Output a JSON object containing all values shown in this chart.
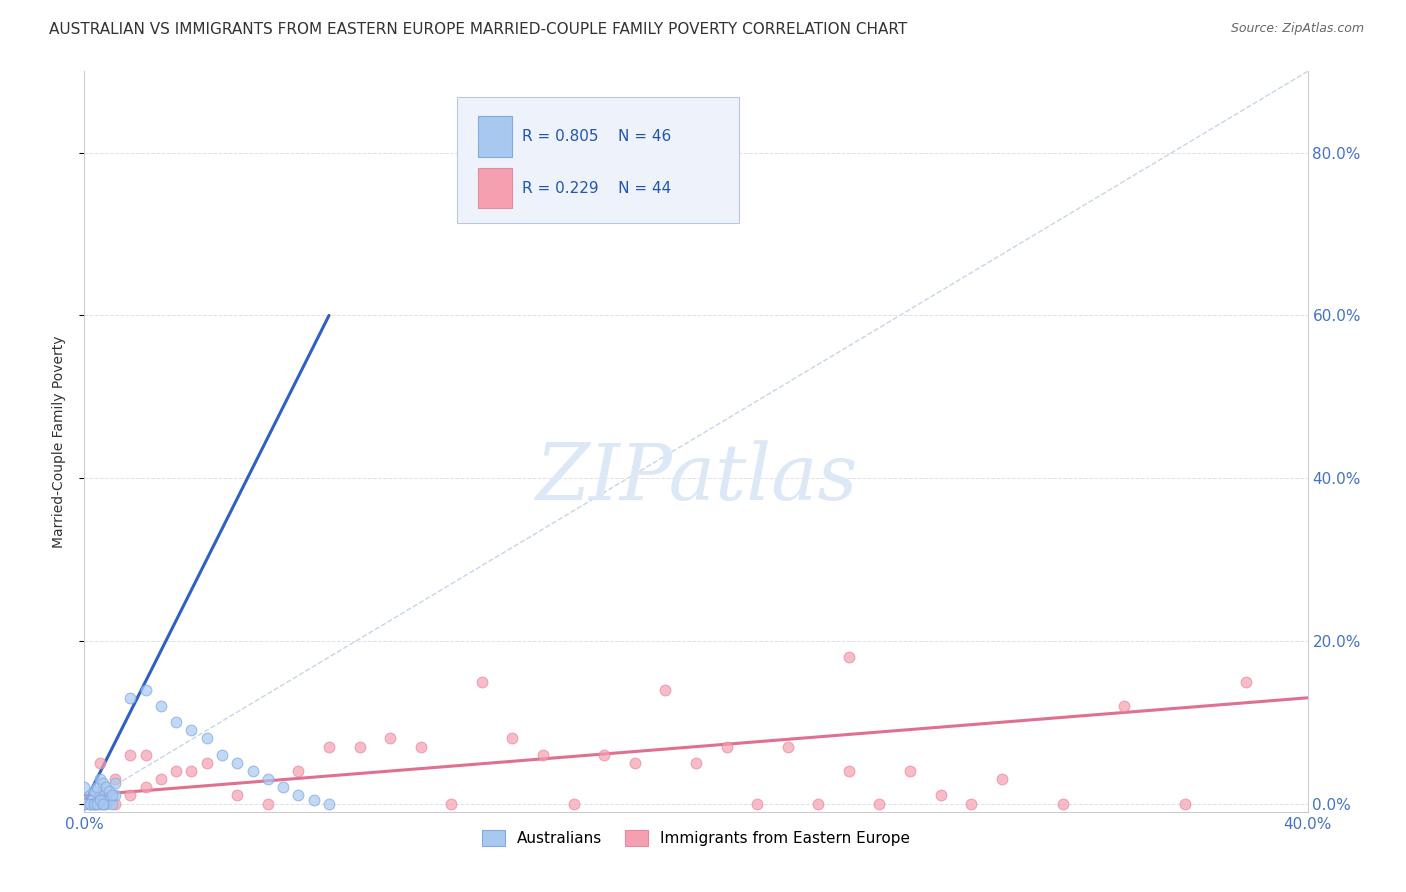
{
  "title": "AUSTRALIAN VS IMMIGRANTS FROM EASTERN EUROPE MARRIED-COUPLE FAMILY POVERTY CORRELATION CHART",
  "source": "Source: ZipAtlas.com",
  "ylabel": "Married-Couple Family Poverty",
  "xlim": [
    0.0,
    0.4
  ],
  "ylim": [
    -0.01,
    0.9
  ],
  "yticks": [
    0.0,
    0.2,
    0.4,
    0.6,
    0.8
  ],
  "ytick_labels_right": [
    "0.0%",
    "20.0%",
    "40.0%",
    "60.0%",
    "80.0%"
  ],
  "xtick_positions": [
    0.0,
    0.4
  ],
  "xtick_labels": [
    "0.0%",
    "40.0%"
  ],
  "legend_r1": "0.805",
  "legend_n1": "46",
  "legend_r2": "0.229",
  "legend_n2": "44",
  "australian_color": "#a8c8f0",
  "immigrant_color": "#f5a0b0",
  "blue_line_color": "#3060c0",
  "pink_line_color": "#e07090",
  "diag_line_color": "#b8cce0",
  "grid_color": "#dde1ec",
  "background_color": "#ffffff",
  "watermark_color": "#dce8f5",
  "aus_scatter_x": [
    0.0,
    0.002,
    0.003,
    0.004,
    0.005,
    0.006,
    0.007,
    0.008,
    0.009,
    0.01,
    0.0,
    0.002,
    0.003,
    0.004,
    0.005,
    0.006,
    0.007,
    0.008,
    0.009,
    0.01,
    0.0,
    0.002,
    0.003,
    0.004,
    0.005,
    0.006,
    0.015,
    0.02,
    0.025,
    0.03,
    0.035,
    0.04,
    0.045,
    0.05,
    0.055,
    0.06,
    0.065,
    0.07,
    0.075,
    0.08,
    0.0,
    0.002,
    0.003,
    0.004,
    0.005,
    0.006
  ],
  "aus_scatter_y": [
    0.0,
    0.0,
    0.0,
    0.005,
    0.01,
    0.005,
    0.0,
    0.005,
    0.0,
    0.01,
    0.02,
    0.01,
    0.015,
    0.02,
    0.03,
    0.025,
    0.02,
    0.015,
    0.01,
    0.025,
    0.0,
    0.0,
    0.0,
    0.0,
    0.0,
    0.0,
    0.13,
    0.14,
    0.12,
    0.1,
    0.09,
    0.08,
    0.06,
    0.05,
    0.04,
    0.03,
    0.02,
    0.01,
    0.005,
    0.0,
    0.0,
    0.0,
    0.0,
    0.0,
    0.005,
    0.0
  ],
  "imm_scatter_x": [
    0.0,
    0.005,
    0.01,
    0.015,
    0.02,
    0.025,
    0.03,
    0.035,
    0.04,
    0.05,
    0.06,
    0.07,
    0.08,
    0.09,
    0.1,
    0.11,
    0.12,
    0.13,
    0.14,
    0.15,
    0.16,
    0.17,
    0.18,
    0.19,
    0.2,
    0.21,
    0.22,
    0.23,
    0.24,
    0.25,
    0.26,
    0.27,
    0.28,
    0.29,
    0.3,
    0.32,
    0.34,
    0.36,
    0.38,
    0.005,
    0.01,
    0.015,
    0.02,
    0.25
  ],
  "imm_scatter_y": [
    0.0,
    0.01,
    0.0,
    0.01,
    0.02,
    0.03,
    0.04,
    0.04,
    0.05,
    0.01,
    0.0,
    0.04,
    0.07,
    0.07,
    0.08,
    0.07,
    0.0,
    0.15,
    0.08,
    0.06,
    0.0,
    0.06,
    0.05,
    0.14,
    0.05,
    0.07,
    0.0,
    0.07,
    0.0,
    0.18,
    0.0,
    0.04,
    0.01,
    0.0,
    0.03,
    0.0,
    0.12,
    0.0,
    0.15,
    0.05,
    0.03,
    0.06,
    0.06,
    0.04
  ],
  "aus_trend_x": [
    0.0,
    0.08
  ],
  "aus_trend_y": [
    0.0,
    0.6
  ],
  "imm_trend_x": [
    0.0,
    0.4
  ],
  "imm_trend_y": [
    0.01,
    0.13
  ],
  "diag_line_x": [
    0.0,
    0.4
  ],
  "diag_line_y": [
    0.0,
    0.9
  ],
  "legend_box_color": "#eef2fa",
  "title_fontsize": 11,
  "source_fontsize": 9,
  "axis_tick_color": "#4472c4",
  "scatter_size": 60,
  "scatter_alpha": 0.7
}
